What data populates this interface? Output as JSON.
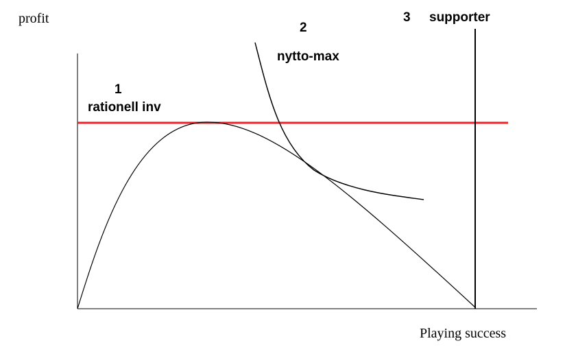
{
  "axes": {
    "y_label": "profit",
    "x_label": "Playing success"
  },
  "regions": [
    {
      "number": "1",
      "label": "rationell inv"
    },
    {
      "number": "2",
      "label": "nytto-max"
    },
    {
      "number": "3",
      "label": "supporter"
    }
  ]
}
